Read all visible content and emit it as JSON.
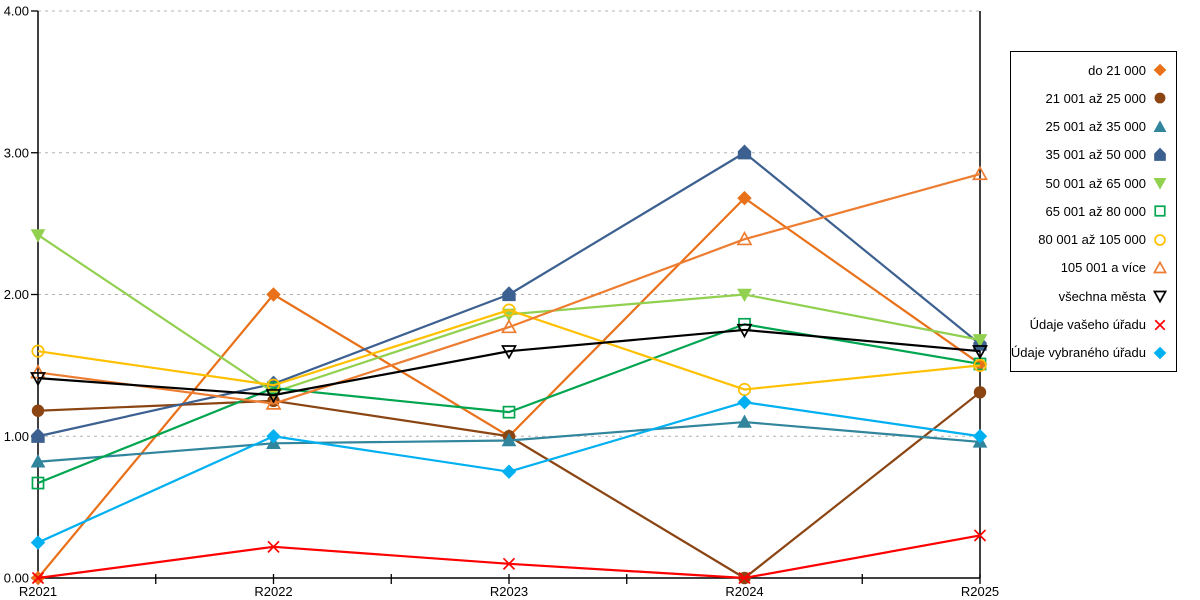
{
  "figure": {
    "background": "#FFFFFF",
    "axis_color": "#000000",
    "grid_color": "#B3B3B3",
    "legend_border_color": "#000000"
  },
  "chart_data": {
    "type": "line",
    "title": "",
    "xlabel": "",
    "ylabel": "",
    "x": [
      "R2021",
      "R2022",
      "R2023",
      "R2024",
      "R2025"
    ],
    "ylim": [
      0,
      4
    ],
    "yticks": [
      0,
      1,
      2,
      3,
      4
    ],
    "ytick_labels": [
      "0.00",
      "1.00",
      "2.00",
      "3.00",
      "4.00"
    ],
    "grid": "horizontal-dashed",
    "legend_position": "right",
    "series": [
      {
        "name": "do 21 000",
        "color": "#E8711A",
        "marker": "diamond",
        "marker_style": "filled",
        "values": [
          0.0,
          2.0,
          1.0,
          2.68,
          1.51
        ]
      },
      {
        "name": "21 001 až 25 000",
        "color": "#8B4513",
        "marker": "circle",
        "marker_style": "filled",
        "values": [
          1.18,
          1.25,
          1.0,
          0.0,
          1.31
        ]
      },
      {
        "name": "25 001 až 35 000",
        "color": "#31859C",
        "marker": "triangle-up",
        "marker_style": "filled",
        "values": [
          0.82,
          0.95,
          0.97,
          1.1,
          0.96
        ]
      },
      {
        "name": "35 001 až 50 000",
        "color": "#3C6090",
        "marker": "pentagon",
        "marker_style": "filled",
        "values": [
          1.0,
          1.37,
          2.0,
          3.0,
          1.65
        ]
      },
      {
        "name": "50 001 až 65 000",
        "color": "#92D050",
        "marker": "triangle-down",
        "marker_style": "filled",
        "values": [
          2.42,
          1.31,
          1.86,
          2.0,
          1.68
        ]
      },
      {
        "name": "65 001 až 80 000",
        "color": "#00A550",
        "marker": "square",
        "marker_style": "open",
        "values": [
          0.67,
          1.34,
          1.17,
          1.79,
          1.51
        ]
      },
      {
        "name": "80 001 až 105 000",
        "color": "#FFC000",
        "marker": "circle",
        "marker_style": "open",
        "values": [
          1.6,
          1.36,
          1.89,
          1.33,
          1.5
        ]
      },
      {
        "name": "105 001 a více",
        "color": "#ED7D31",
        "marker": "triangle-up",
        "marker_style": "open",
        "values": [
          1.45,
          1.23,
          1.77,
          2.39,
          2.85
        ]
      },
      {
        "name": "všechna města",
        "color": "#000000",
        "marker": "triangle-down",
        "marker_style": "open",
        "values": [
          1.41,
          1.29,
          1.6,
          1.75,
          1.6
        ]
      },
      {
        "name": "Údaje vašeho úřadu",
        "color": "#FE0000",
        "marker": "x",
        "marker_style": "open",
        "values": [
          0.0,
          0.22,
          0.1,
          0.0,
          0.3
        ]
      },
      {
        "name": "Údaje vybraného úřadu",
        "color": "#00B0F0",
        "marker": "diamond",
        "marker_style": "filled",
        "values": [
          0.25,
          1.0,
          0.75,
          1.24,
          1.0
        ]
      }
    ]
  }
}
